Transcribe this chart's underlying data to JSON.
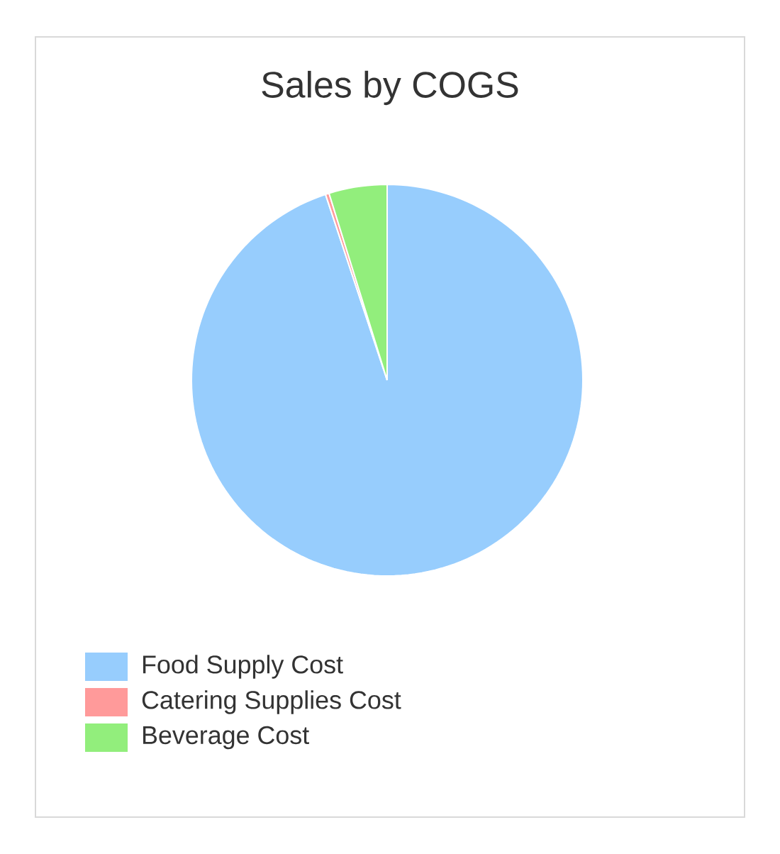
{
  "chart_data": {
    "type": "pie",
    "title": "Sales by COGS",
    "categories": [
      "Food Supply Cost",
      "Catering Supplies Cost",
      "Beverage Cost"
    ],
    "values": [
      94.9,
      0.3,
      4.8
    ],
    "colors": [
      "#97cdfd",
      "#ff9a9a",
      "#92ee7c"
    ],
    "legend": "bottom left"
  }
}
